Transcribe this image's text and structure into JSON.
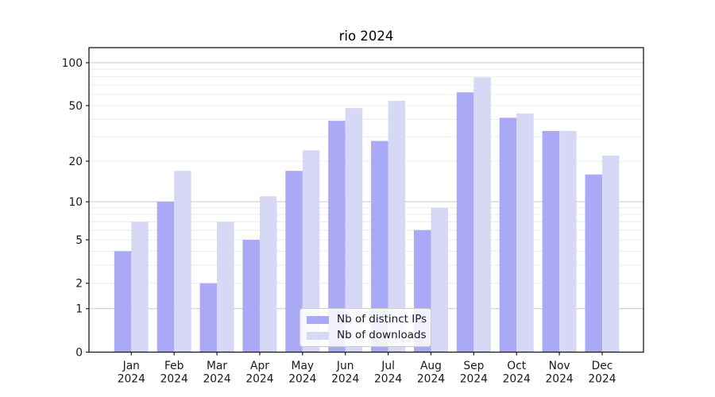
{
  "chart_data": {
    "type": "bar",
    "title": "rio 2024",
    "categories": [
      "Jan 2024",
      "Feb 2024",
      "Mar 2024",
      "Apr 2024",
      "May 2024",
      "Jun 2024",
      "Jul 2024",
      "Aug 2024",
      "Sep 2024",
      "Oct 2024",
      "Nov 2024",
      "Dec 2024"
    ],
    "series": [
      {
        "name": "Nb of distinct IPs",
        "color": "#a9a9f6",
        "values": [
          4,
          10,
          2,
          5,
          17,
          39,
          28,
          6,
          62,
          41,
          33,
          16
        ]
      },
      {
        "name": "Nb of downloads",
        "color": "#d7d7f6",
        "values": [
          7,
          17,
          7,
          11,
          24,
          48,
          54,
          9,
          79,
          44,
          33,
          22
        ]
      }
    ],
    "xlabel": "",
    "ylabel": "",
    "yscale": "log1p",
    "ylim": [
      0,
      128
    ],
    "yticks": [
      0,
      1,
      2,
      5,
      10,
      20,
      50,
      100
    ],
    "grid": "on",
    "grid_major": [
      1,
      10,
      100
    ],
    "grid_minor": [
      2,
      3,
      4,
      5,
      6,
      7,
      8,
      9,
      20,
      30,
      40,
      50,
      60,
      70,
      80,
      90
    ],
    "legend_position": "lower-center"
  },
  "style": {
    "background": "#ffffff",
    "axis_color": "#1a1a1a",
    "text_color": "#191919",
    "major_grid_color": "#c9c9c9",
    "minor_grid_color": "#ececec"
  }
}
